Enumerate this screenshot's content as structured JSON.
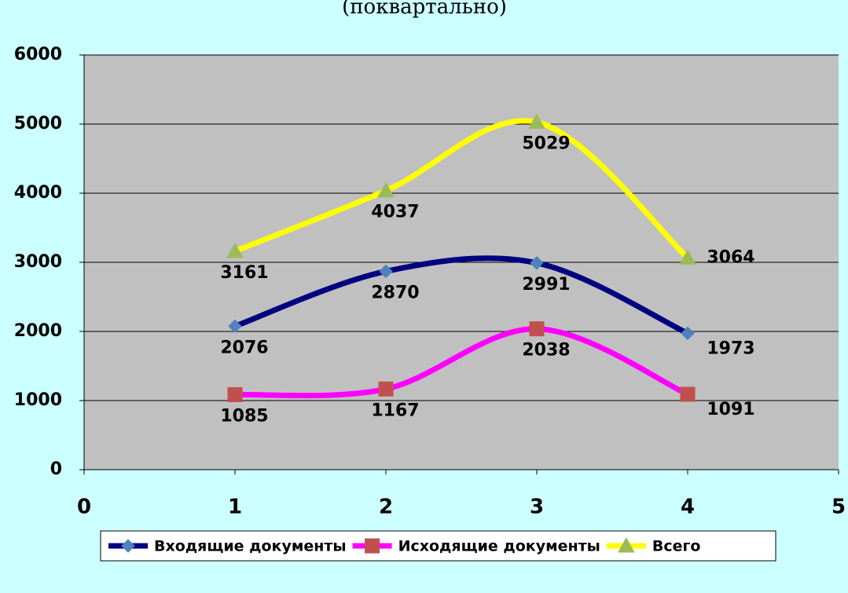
{
  "chart_data": {
    "type": "line",
    "subtitle": "(поквартально)",
    "x": [
      1,
      2,
      3,
      4
    ],
    "xlim": [
      0,
      5
    ],
    "xticks": [
      0,
      1,
      2,
      3,
      4,
      5
    ],
    "ylim": [
      0,
      6000
    ],
    "yticks": [
      0,
      1000,
      2000,
      3000,
      4000,
      5000,
      6000
    ],
    "grid": true,
    "smooth": true,
    "legend": "bottom",
    "series": [
      {
        "name": "Входящие документы",
        "color": "#000080",
        "marker": "diamond",
        "marker_color": "#4f81bd",
        "values": [
          2076,
          2870,
          2991,
          1973
        ]
      },
      {
        "name": "Исходящие документы",
        "color": "#ff00ff",
        "marker": "square",
        "marker_color": "#c0504d",
        "values": [
          1085,
          1167,
          2038,
          1091
        ]
      },
      {
        "name": "Всего",
        "color": "#ffff00",
        "marker": "triangle",
        "marker_color": "#9bbb59",
        "values": [
          3161,
          4037,
          5029,
          3064
        ]
      }
    ]
  }
}
